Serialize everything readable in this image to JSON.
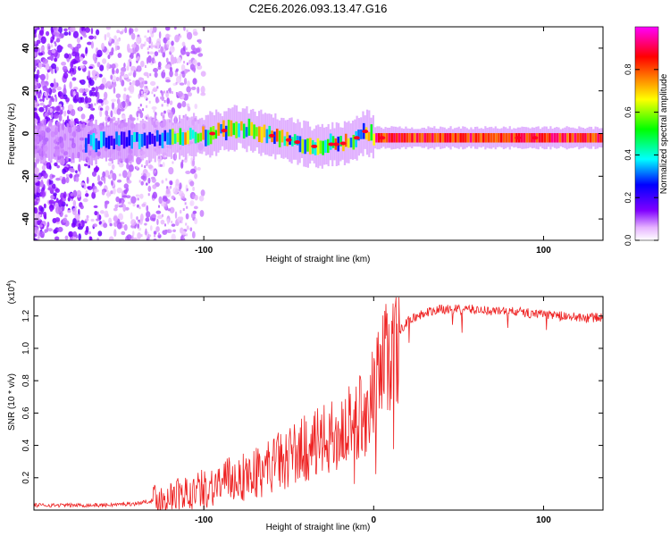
{
  "title": "C2E6.2026.093.13.47.G16",
  "chart_data": [
    {
      "type": "heatmap",
      "title": "C2E6.2026.093.13.47.G16",
      "xlabel": "Height of straight line (km)",
      "ylabel": "Frequency (Hz)",
      "xlim": [
        -200,
        135
      ],
      "ylim": [
        -50,
        50
      ],
      "x_ticks": [
        -100,
        100
      ],
      "y_ticks": [
        -40,
        -20,
        0,
        20,
        40
      ],
      "ridge": {
        "description": "Centre frequency of the dominant spectral line vs. height",
        "x": [
          -200,
          -180,
          -160,
          -140,
          -120,
          -100,
          -90,
          -80,
          -70,
          -60,
          -50,
          -40,
          -35,
          -30,
          -25,
          -20,
          -15,
          -10,
          -5,
          0,
          10,
          20,
          40,
          60,
          80,
          100,
          120,
          135
        ],
        "y": [
          -4,
          -4,
          -4,
          -3,
          -2,
          -1,
          1,
          3,
          1,
          -1,
          -3,
          -5,
          -6,
          -6,
          -5,
          -5,
          -4,
          -2,
          1,
          -2,
          -2,
          -2,
          -2,
          -2,
          -2,
          -2,
          -2,
          -2
        ]
      },
      "colorbar": {
        "label": "Normalized spectral amplitude",
        "range": [
          0,
          1
        ],
        "ticks": [
          "0.0",
          "0.2",
          "0.4",
          "0.6",
          "0.8"
        ],
        "tick_values": [
          0.0,
          0.2,
          0.4,
          0.6,
          0.8
        ],
        "colormap": [
          "#ffffff",
          "#e6b3ff",
          "#8000ff",
          "#0000ff",
          "#00ffff",
          "#00ff00",
          "#ffff00",
          "#ff8000",
          "#ff0000",
          "#ff00ff"
        ]
      }
    },
    {
      "type": "line",
      "xlabel": "Height of straight line (km)",
      "ylabel": "SNR (10 * v/v)",
      "y_scale_label": "(x10",
      "y_scale_exponent": "4",
      "y_scale_close": ")",
      "xlim": [
        -200,
        135
      ],
      "ylim": [
        0,
        1.32
      ],
      "x_ticks": [
        -100,
        0,
        100
      ],
      "y_ticks": [
        0.2,
        0.4,
        0.6,
        0.8,
        1.0,
        1.2
      ],
      "y_tick_labels": [
        "0.2",
        "0.4",
        "0.6",
        "0.8",
        "1.0",
        "1.2"
      ],
      "series": [
        {
          "name": "SNR",
          "color": "#ee2222",
          "x": [
            -200,
            -180,
            -160,
            -140,
            -130,
            -120,
            -110,
            -100,
            -90,
            -80,
            -70,
            -60,
            -50,
            -40,
            -30,
            -20,
            -10,
            0,
            5,
            10,
            15,
            20,
            30,
            40,
            50,
            60,
            70,
            80,
            90,
            100,
            110,
            120,
            135
          ],
          "y": [
            0.03,
            0.03,
            0.03,
            0.04,
            0.06,
            0.08,
            0.1,
            0.13,
            0.17,
            0.2,
            0.23,
            0.28,
            0.33,
            0.38,
            0.42,
            0.47,
            0.55,
            0.7,
            0.85,
            1.0,
            1.1,
            1.17,
            1.22,
            1.24,
            1.24,
            1.24,
            1.23,
            1.23,
            1.22,
            1.21,
            1.2,
            1.19,
            1.19
          ]
        }
      ]
    }
  ]
}
